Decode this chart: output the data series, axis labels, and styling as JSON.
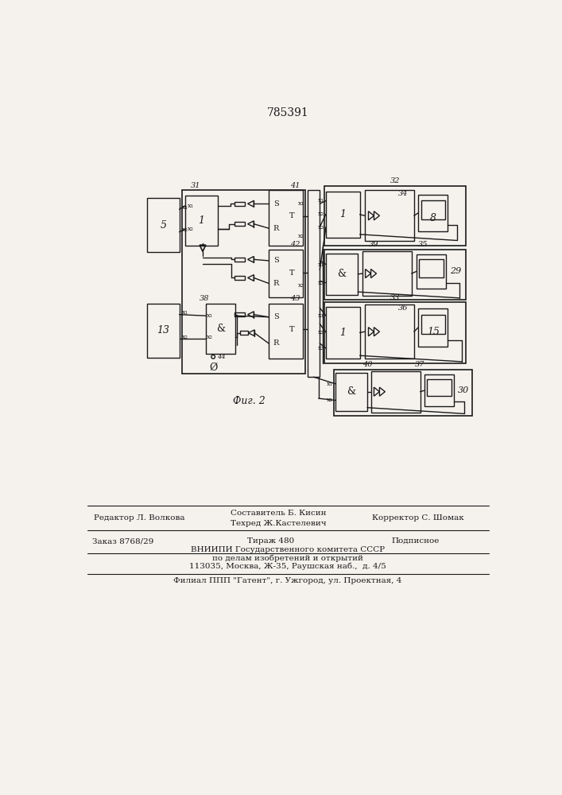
{
  "title": "785391",
  "fig_label": "Фиг. 2",
  "bg_color": "#f5f2ee",
  "line_color": "#1a1a1a",
  "footer_editor": "Редактор Л. Волкова",
  "footer_comp1": "Составитель Б. Кисин",
  "footer_comp2": "Техред Ж.Кастелевич",
  "footer_corrector": "Корректор С. Шомак",
  "footer_order": "Заказ 8768/29",
  "footer_tirazh": "Тираж 480",
  "footer_podp": "Подписное",
  "footer_org": "ВНИИПИ Государственного комитета СССР",
  "footer_dept": "по делам изобретений и открытий",
  "footer_addr": "113035, Москва, Ж-35, Раушская наб.,  д. 4/5",
  "footer_filial": "Филиал ППП \"Гатент\", г. Ужгород, ул. Проектная, 4"
}
